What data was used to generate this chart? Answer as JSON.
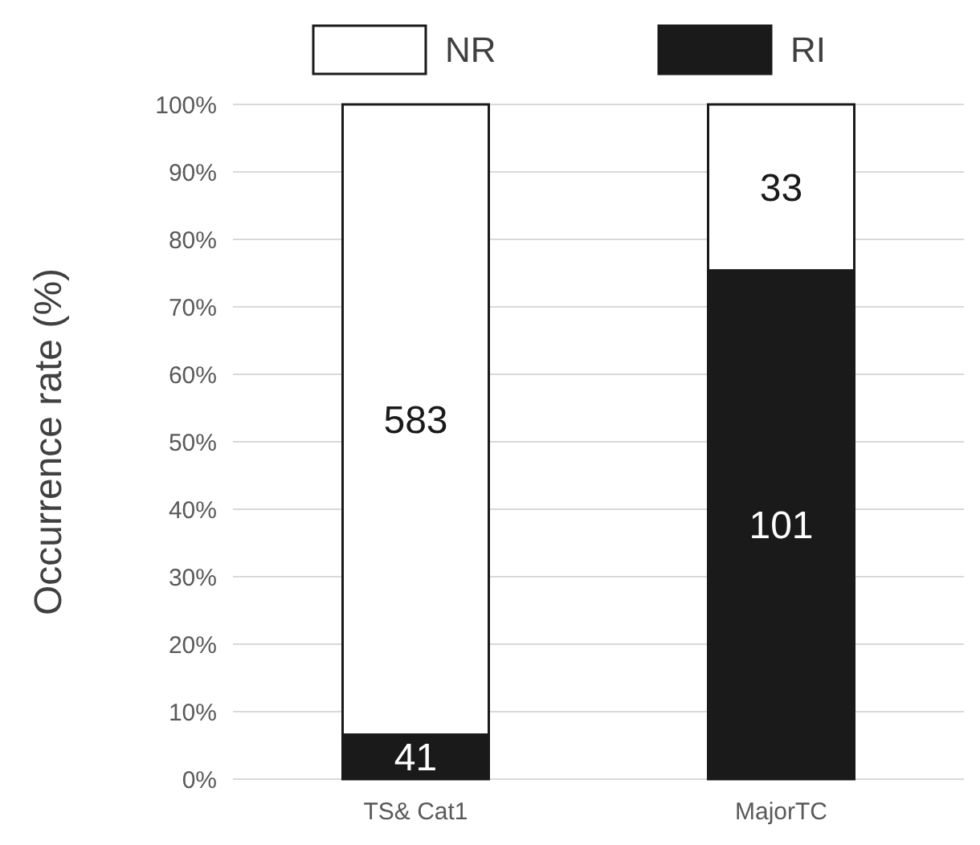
{
  "chart_data": {
    "type": "bar",
    "stacked": true,
    "ylabel": "Occurrence rate  (%)",
    "categories": [
      "TS& Cat1",
      "MajorTC"
    ],
    "series": [
      {
        "name": "RI",
        "color": "#1a1a1a",
        "values": [
          6.6,
          75.4
        ]
      },
      {
        "name": "NR",
        "color": "#ffffff",
        "values": [
          93.4,
          24.6
        ]
      }
    ],
    "annotations": [
      "41",
      "583",
      "101",
      "33"
    ],
    "ylim": [
      0,
      100
    ],
    "yticks": [
      {
        "value": 0,
        "label": "0%"
      },
      {
        "value": 10,
        "label": "10%"
      },
      {
        "value": 20,
        "label": "20%"
      },
      {
        "value": 30,
        "label": "30%"
      },
      {
        "value": 40,
        "label": "40%"
      },
      {
        "value": 50,
        "label": "50%"
      },
      {
        "value": 60,
        "label": "60%"
      },
      {
        "value": 70,
        "label": "70%"
      },
      {
        "value": 80,
        "label": "80%"
      },
      {
        "value": 90,
        "label": "90%"
      },
      {
        "value": 100,
        "label": "100%"
      }
    ],
    "grid": "y",
    "legend": "top"
  }
}
